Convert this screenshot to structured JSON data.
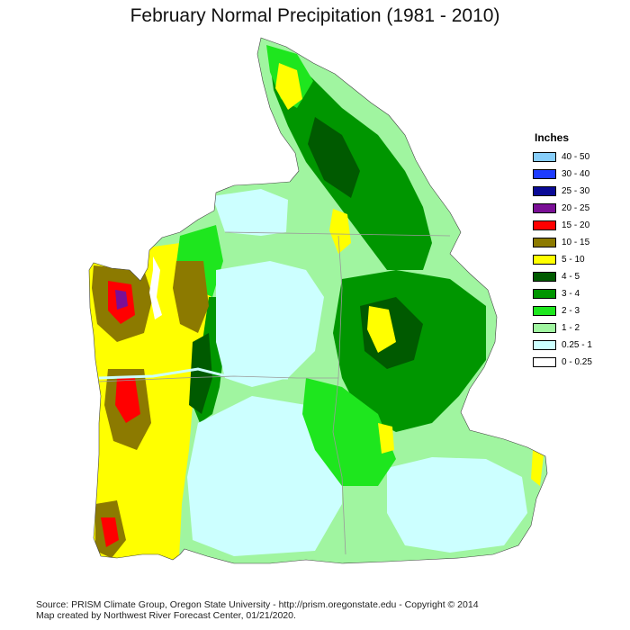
{
  "title": "February Normal Precipitation (1981 - 2010)",
  "legend": {
    "title": "Inches",
    "items": [
      {
        "label": "40 - 50",
        "color": "#87CEFA"
      },
      {
        "label": "30 - 40",
        "color": "#1E3CFF"
      },
      {
        "label": "25 - 30",
        "color": "#0A0A96"
      },
      {
        "label": "20 - 25",
        "color": "#7A0F96"
      },
      {
        "label": "15 - 20",
        "color": "#FF0000"
      },
      {
        "label": "10 - 15",
        "color": "#8C7A00"
      },
      {
        "label": "5 - 10",
        "color": "#FFFF00"
      },
      {
        "label": "4 - 5",
        "color": "#005A00"
      },
      {
        "label": "3 - 4",
        "color": "#009600"
      },
      {
        "label": "2 - 3",
        "color": "#1EE61E"
      },
      {
        "label": "1 - 2",
        "color": "#A0F5A0"
      },
      {
        "label": "0.25 - 1",
        "color": "#CCFFFF"
      },
      {
        "label": "0 - 0.25",
        "color": "#FFFFFF"
      }
    ]
  },
  "footer": {
    "line1": "Source: PRISM Climate Group, Oregon State University - http://prism.oregonstate.edu - Copyright © 2014",
    "line2": "Map created by Northwest River Forecast Center, 01/21/2020."
  }
}
